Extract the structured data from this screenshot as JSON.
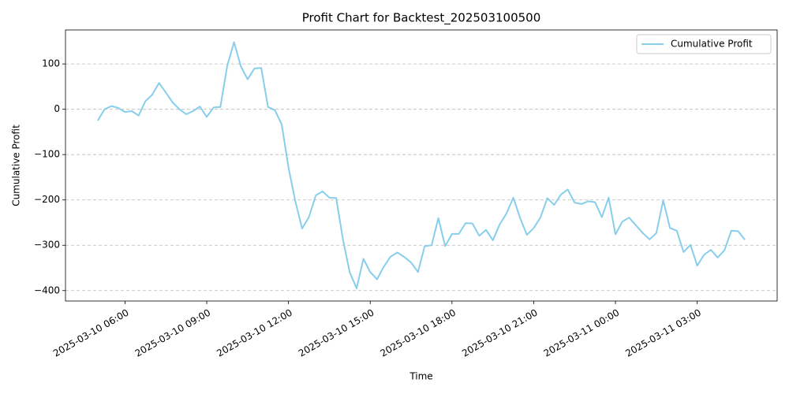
{
  "chart_data": {
    "type": "line",
    "title": "Profit Chart for Backtest_202503100500",
    "xlabel": "Time",
    "ylabel": "Cumulative Profit",
    "x": [
      "2025-03-10 05:00",
      "2025-03-10 05:15",
      "2025-03-10 05:30",
      "2025-03-10 05:45",
      "2025-03-10 06:00",
      "2025-03-10 06:15",
      "2025-03-10 06:30",
      "2025-03-10 06:45",
      "2025-03-10 07:00",
      "2025-03-10 07:15",
      "2025-03-10 07:30",
      "2025-03-10 07:45",
      "2025-03-10 08:00",
      "2025-03-10 08:15",
      "2025-03-10 08:30",
      "2025-03-10 08:45",
      "2025-03-10 09:00",
      "2025-03-10 09:15",
      "2025-03-10 09:30",
      "2025-03-10 09:45",
      "2025-03-10 10:00",
      "2025-03-10 10:15",
      "2025-03-10 10:30",
      "2025-03-10 10:45",
      "2025-03-10 11:00",
      "2025-03-10 11:15",
      "2025-03-10 11:30",
      "2025-03-10 11:45",
      "2025-03-10 12:00",
      "2025-03-10 12:15",
      "2025-03-10 12:30",
      "2025-03-10 12:45",
      "2025-03-10 13:00",
      "2025-03-10 13:15",
      "2025-03-10 13:30",
      "2025-03-10 13:45",
      "2025-03-10 14:00",
      "2025-03-10 14:15",
      "2025-03-10 14:30",
      "2025-03-10 14:45",
      "2025-03-10 15:00",
      "2025-03-10 15:15",
      "2025-03-10 15:30",
      "2025-03-10 15:45",
      "2025-03-10 16:00",
      "2025-03-10 16:15",
      "2025-03-10 16:30",
      "2025-03-10 16:45",
      "2025-03-10 17:00",
      "2025-03-10 17:15",
      "2025-03-10 17:30",
      "2025-03-10 17:45",
      "2025-03-10 18:00",
      "2025-03-10 18:15",
      "2025-03-10 18:30",
      "2025-03-10 18:45",
      "2025-03-10 19:00",
      "2025-03-10 19:15",
      "2025-03-10 19:30",
      "2025-03-10 19:45",
      "2025-03-10 20:00",
      "2025-03-10 20:15",
      "2025-03-10 20:30",
      "2025-03-10 20:45",
      "2025-03-10 21:00",
      "2025-03-10 21:15",
      "2025-03-10 21:30",
      "2025-03-10 21:45",
      "2025-03-10 22:00",
      "2025-03-10 22:15",
      "2025-03-10 22:30",
      "2025-03-10 22:45",
      "2025-03-10 23:00",
      "2025-03-10 23:15",
      "2025-03-10 23:30",
      "2025-03-10 23:45",
      "2025-03-11 00:00",
      "2025-03-11 00:15",
      "2025-03-11 00:30",
      "2025-03-11 00:45",
      "2025-03-11 01:00",
      "2025-03-11 01:15",
      "2025-03-11 01:30",
      "2025-03-11 01:45",
      "2025-03-11 02:00",
      "2025-03-11 02:15",
      "2025-03-11 02:30",
      "2025-03-11 02:45",
      "2025-03-11 03:00",
      "2025-03-11 03:15",
      "2025-03-11 03:30",
      "2025-03-11 03:45",
      "2025-03-11 04:00",
      "2025-03-11 04:15",
      "2025-03-11 04:30",
      "2025-03-11 04:45"
    ],
    "series": [
      {
        "name": "Cumulative Profit",
        "color": "#87ceeb",
        "values": [
          -25,
          0,
          7,
          3,
          -6,
          -4,
          -14,
          18,
          32,
          58,
          37,
          15,
          0,
          -11,
          -4,
          6,
          -17,
          4,
          5,
          95,
          148,
          95,
          66,
          90,
          91,
          5,
          -2,
          -33,
          -128,
          -203,
          -263,
          -238,
          -190,
          -181,
          -195,
          -196,
          -288,
          -360,
          -395,
          -330,
          -359,
          -375,
          -347,
          -325,
          -316,
          -326,
          -338,
          -359,
          -302,
          -300,
          -240,
          -302,
          -275,
          -275,
          -251,
          -252,
          -279,
          -266,
          -289,
          -254,
          -230,
          -195,
          -240,
          -277,
          -262,
          -238,
          -196,
          -211,
          -188,
          -177,
          -206,
          -209,
          -203,
          -205,
          -238,
          -195,
          -276,
          -248,
          -239,
          -256,
          -273,
          -287,
          -273,
          -201,
          -262,
          -268,
          -315,
          -299,
          -345,
          -321,
          -310,
          -327,
          -311,
          -268,
          -269,
          -288
        ]
      }
    ],
    "xlim": [
      "2025-03-10 03:49",
      "2025-03-11 05:56"
    ],
    "xticks": [
      "2025-03-10 06:00",
      "2025-03-10 09:00",
      "2025-03-10 12:00",
      "2025-03-10 15:00",
      "2025-03-10 18:00",
      "2025-03-10 21:00",
      "2025-03-11 00:00",
      "2025-03-11 03:00"
    ],
    "ylim": [
      -423,
      175
    ],
    "yticks": [
      {
        "value": -400,
        "label": "−400"
      },
      {
        "value": -300,
        "label": "−300"
      },
      {
        "value": -200,
        "label": "−200"
      },
      {
        "value": -100,
        "label": "−100"
      },
      0,
      100
    ],
    "grid": "y",
    "legend": "upper right"
  }
}
